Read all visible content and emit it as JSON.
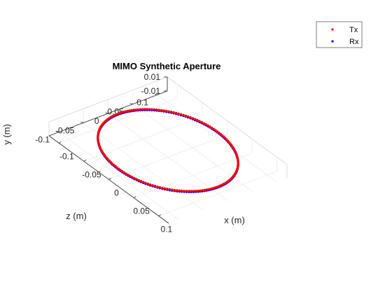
{
  "chart_data": {
    "type": "scatter",
    "title": "MIMO Synthetic Aperture",
    "view": "3d",
    "grid": true,
    "legend_position": "top-right",
    "axes": {
      "x": {
        "label": "x (m)",
        "lim": [
          -0.12,
          0.12
        ],
        "ticks": [
          -0.1,
          -0.05,
          0,
          0.05,
          0.1
        ],
        "tick_labels": [
          "-0.1",
          "-0.05",
          "0",
          "0.05",
          "0.1"
        ]
      },
      "z": {
        "label": "z (m)",
        "lim": [
          -0.12,
          0.12
        ],
        "ticks": [
          -0.1,
          -0.05,
          0,
          0.05,
          0.1
        ],
        "tick_labels": [
          "-0.1",
          "-0.05",
          "0",
          "0.05",
          "0.1"
        ]
      },
      "y": {
        "label": "y (m)",
        "lim": [
          -0.01,
          0.01
        ],
        "ticks": [
          -0.01,
          0.01
        ],
        "tick_labels": [
          "-0.01",
          "0.01"
        ]
      }
    },
    "series": [
      {
        "name": "Tx",
        "color": "#ff0000",
        "marker": "dot",
        "shape": "circle",
        "center": [
          0,
          0,
          0
        ],
        "radius": 0.1,
        "points": 180
      },
      {
        "name": "Rx",
        "color": "#0000ff",
        "marker": "dot",
        "shape": "circle",
        "center": [
          0,
          0,
          0
        ],
        "radius": 0.1,
        "points": 180
      }
    ]
  }
}
